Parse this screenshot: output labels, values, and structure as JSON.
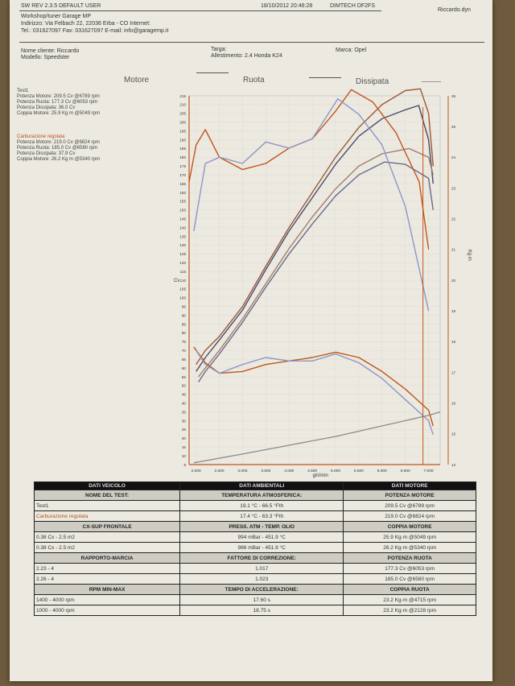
{
  "header": {
    "version": "SW REV 2.3.5   DEFAULT USER",
    "datetime": "18/10/2012 20:46:28",
    "device": "DIMTECH DF2FS",
    "user": "Riccardo.dyn",
    "workshop": "Workshop/tuner Garage MP",
    "address": "Indirizzo: Via Felbach 22, 22036 Erba - CO Internet:",
    "contacts": "Tel.: 031627097 Fax: 031627097 E-mail: info@garagemp.it"
  },
  "vehicle": {
    "client": "Nome cliente: Riccardo",
    "model": "Modello: Speedster",
    "plate": "Targa:",
    "trim": "Allestimento: 2.4 Honda K24",
    "brand": "Marca: Opel"
  },
  "legend": {
    "motor": "Motore",
    "wheel": "Ruota",
    "lost": "Dissipata"
  },
  "tests": [
    {
      "name": "Test1",
      "lines": [
        "Potenza Motore: 209.5 Cv @6789 rpm",
        "Potenza Ruota: 177.3 Cv @6053 rpm",
        "Potenza Dissipata: 36.0 Cv",
        "Coppia Motore: 25.9 Kg m @5049 rpm"
      ]
    },
    {
      "name": "Carburazione regolata",
      "lines": [
        "Potenza Motore: 219.0 Cv @6824 rpm",
        "Potenza Ruota: 185.0 Cv @6580 rpm",
        "Potenza Dissipata: 37.9 Cv",
        "Coppia Motore: 26.2 Kg m @5340 rpm"
      ]
    }
  ],
  "chart_data": {
    "type": "line",
    "title": "",
    "xlabel": "giri/min",
    "ylabel": "Cv",
    "y2label": "Kg m",
    "xlim": [
      1850,
      7250
    ],
    "ylim": [
      5,
      215
    ],
    "y2lim": [
      14,
      26
    ],
    "xticks": [
      "2.000",
      "2.500",
      "3.000",
      "3.500",
      "4.000",
      "4.500",
      "5.000",
      "5.500",
      "6.000",
      "6.500",
      "7.000"
    ],
    "yticks": [
      5,
      10,
      15,
      20,
      25,
      30,
      35,
      40,
      45,
      50,
      55,
      60,
      65,
      70,
      75,
      80,
      85,
      90,
      95,
      100,
      105,
      110,
      115,
      120,
      125,
      130,
      135,
      140,
      145,
      150,
      155,
      160,
      165,
      170,
      175,
      180,
      185,
      190,
      195,
      200,
      205,
      210,
      215
    ],
    "y2ticks": [
      14,
      15,
      16,
      17,
      18,
      19,
      20,
      21,
      22,
      23,
      24,
      25,
      26
    ],
    "cursor_rpm": 6880,
    "series": [
      {
        "kind": "motor",
        "axis": "y",
        "color": "#9a5a36",
        "x": [
          2000,
          2200,
          2500,
          3000,
          3500,
          4000,
          4500,
          5000,
          5500,
          6000,
          6500,
          6824,
          7000,
          7100
        ],
        "y": [
          62,
          70,
          78,
          95,
          118,
          140,
          160,
          180,
          197,
          210,
          218,
          219,
          205,
          175
        ]
      },
      {
        "kind": "motor",
        "axis": "y",
        "color": "#4a4a6a",
        "x": [
          2000,
          2200,
          2500,
          3000,
          3500,
          4000,
          4500,
          5000,
          5500,
          6000,
          6500,
          6789,
          7000,
          7100
        ],
        "y": [
          58,
          66,
          76,
          93,
          116,
          138,
          157,
          176,
          192,
          202,
          207,
          209.5,
          190,
          165
        ]
      },
      {
        "kind": "wheel",
        "axis": "y",
        "color": "#a07e6a",
        "x": [
          2050,
          2200,
          2500,
          3000,
          3500,
          4000,
          4500,
          5000,
          5500,
          6000,
          6580,
          7000,
          7100
        ],
        "y": [
          55,
          60,
          70,
          88,
          108,
          128,
          146,
          162,
          175,
          182,
          185,
          180,
          170
        ]
      },
      {
        "kind": "wheel",
        "axis": "y",
        "color": "#6a6a88",
        "x": [
          2050,
          2200,
          2500,
          3000,
          3500,
          4000,
          4500,
          5000,
          5500,
          6053,
          6500,
          7000,
          7100
        ],
        "y": [
          52,
          58,
          68,
          86,
          106,
          125,
          142,
          158,
          170,
          177.3,
          176,
          168,
          150
        ]
      },
      {
        "kind": "torque",
        "axis": "y2",
        "color": "#c0561a",
        "x": [
          1850,
          2000,
          2200,
          2500,
          3000,
          3500,
          4000,
          4500,
          5000,
          5340,
          5800,
          6300,
          6800,
          7000
        ],
        "y": [
          23.2,
          24.4,
          24.9,
          24.0,
          23.6,
          23.8,
          24.3,
          24.6,
          25.5,
          26.2,
          25.8,
          24.8,
          23.2,
          21.0
        ]
      },
      {
        "kind": "torque",
        "axis": "y2",
        "color": "#8f95c4",
        "x": [
          1950,
          2200,
          2500,
          3000,
          3500,
          4000,
          4500,
          5049,
          5500,
          6000,
          6500,
          7000
        ],
        "y": [
          21.6,
          23.8,
          24.0,
          23.8,
          24.5,
          24.3,
          24.6,
          25.9,
          25.4,
          24.4,
          22.4,
          19.0
        ]
      },
      {
        "kind": "lost",
        "axis": "y",
        "color": "#c0561a",
        "x": [
          1950,
          2200,
          2500,
          3000,
          3500,
          4000,
          4500,
          5000,
          5500,
          6000,
          6500,
          7000,
          7100
        ],
        "y": [
          72,
          63,
          57,
          58,
          62,
          64,
          66,
          69,
          66,
          58,
          48,
          36,
          27
        ]
      },
      {
        "kind": "lost",
        "axis": "y",
        "color": "#8f95c4",
        "x": [
          2000,
          2200,
          2500,
          3000,
          3500,
          4000,
          4500,
          5000,
          5500,
          6000,
          6500,
          7000,
          7100
        ],
        "y": [
          70,
          62,
          57,
          62,
          66,
          64,
          64,
          68,
          63,
          54,
          42,
          30,
          22
        ]
      },
      {
        "kind": "ref",
        "axis": "y",
        "color": "#8a8a8a",
        "x": [
          1950,
          3000,
          4000,
          5000,
          6000,
          7000,
          7250
        ],
        "y": [
          6,
          11,
          16,
          21,
          27,
          33,
          35
        ]
      }
    ]
  },
  "table": {
    "vehicle_header": "DATI VEICOLO",
    "ambient_header": "DATI AMBIENTALI",
    "motor_header": "DATI MOTORE",
    "sections": [
      {
        "c1": "NOME DEL TEST:",
        "c2": "TEMPERATURA ATMOSFERICA:",
        "c3": "POTENZA MOTORE",
        "rows": [
          [
            "Test1",
            "19.1 °C - 66.5 °Fth",
            "209.5  Cv  @6789 rpm"
          ],
          [
            "Carburazione regolata",
            "17.4 °C - 63.3 °Fth",
            "219.0  Cv  @6824 rpm"
          ]
        ]
      },
      {
        "c1": "CX-SUP FRONTALE",
        "c2": "PRESS. ATM - TEMP. OLIO",
        "c3": "COPPIA MOTORE",
        "rows": [
          [
            "0.38 Cx - 2.5 m2",
            "994 mBar - 451.9 °C",
            "25.9  Kg·m  @5049 rpm"
          ],
          [
            "0.38 Cx - 2.5 m2",
            "986 mBar - 451.9 °C",
            "26.2  Kg·m  @5340 rpm"
          ]
        ]
      },
      {
        "c1": "RAPPORTO-MARCIA",
        "c2": "FATTORE DI CORREZIONE:",
        "c3": "POTENZA RUOTA",
        "rows": [
          [
            "2.23 - 4",
            "1.017",
            "177.3  Cv  @6053 rpm"
          ],
          [
            "2.26 - 4",
            "1.023",
            "185.0  Cv  @6580 rpm"
          ]
        ]
      },
      {
        "c1": "RPM MIN-MAX",
        "c2": "TEMPO DI ACCELERAZIONE:",
        "c3": "COPPIA RUOTA",
        "rows": [
          [
            "1400 - 4000 rpm",
            "17.60 s",
            "23.2  Kg·m  @4715 rpm"
          ],
          [
            "1000 - 4000 rpm",
            "18.75 s",
            "23.2  Kg·m  @2128 rpm"
          ]
        ]
      }
    ]
  }
}
